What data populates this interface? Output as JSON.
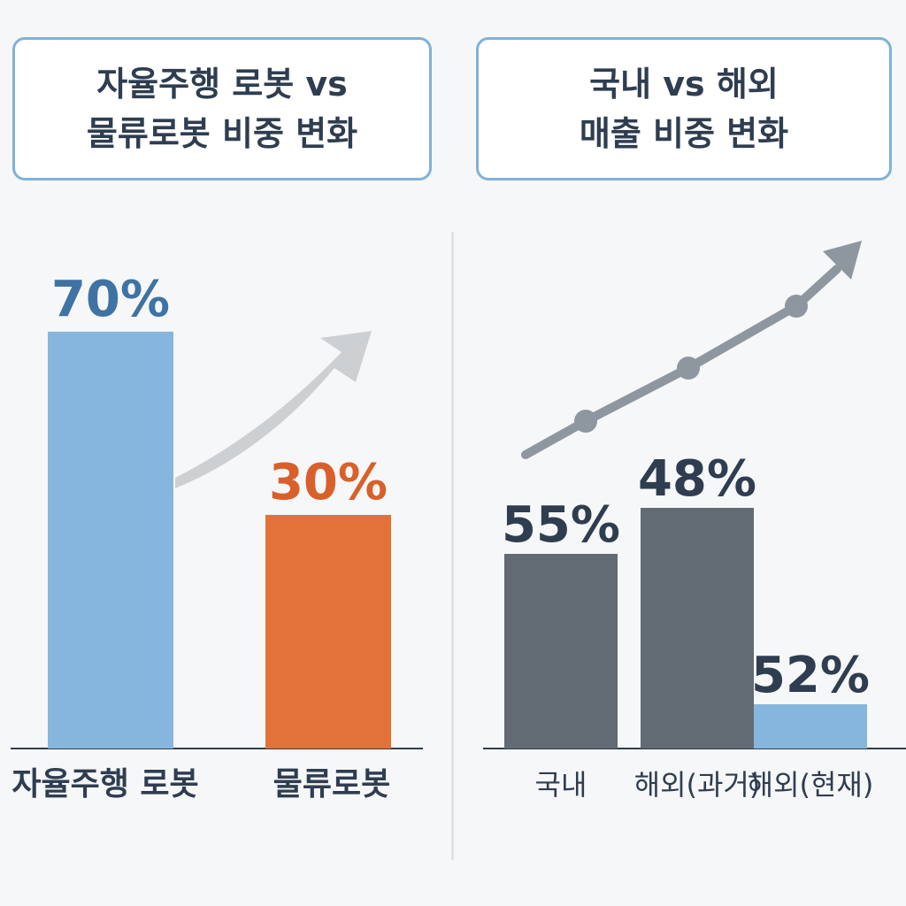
{
  "left_title": {
    "line1": "자율주행 로봇 vs",
    "line2": "물류로봇 비중 변화"
  },
  "right_title": {
    "line1": "국내 vs 해외",
    "line2": "매출 비중 변화"
  },
  "chart_data": [
    {
      "type": "bar",
      "title": "자율주행 로봇 vs 물류로봇 비중 변화",
      "categories": [
        "자율주행 로봇",
        "물류로봇"
      ],
      "values": [
        70,
        30
      ],
      "value_labels": [
        "70%",
        "30%"
      ],
      "unit": "%",
      "colors": [
        "#86b6dd",
        "#e37238"
      ],
      "label_colors": [
        "#3f73a3",
        "#d9602a"
      ],
      "ylim": [
        0,
        100
      ],
      "grid": false,
      "legend": "none",
      "decoration": "upward-trend-arrow"
    },
    {
      "type": "bar",
      "title": "국내 vs 해외 매출 비중 변화",
      "categories": [
        "국내",
        "해외(과거)",
        "해외(현재)"
      ],
      "values": [
        55,
        48,
        52
      ],
      "value_labels": [
        "55%",
        "48%",
        "52%"
      ],
      "unit": "%",
      "colors": [
        "#626a73",
        "#626a73",
        "#86b6dd"
      ],
      "label_colors": [
        "#2f3d50",
        "#2f3d50",
        "#2f3d50"
      ],
      "ylim": [
        0,
        100
      ],
      "grid": false,
      "legend": "none",
      "decoration": "upward-trend-line-with-markers"
    }
  ]
}
